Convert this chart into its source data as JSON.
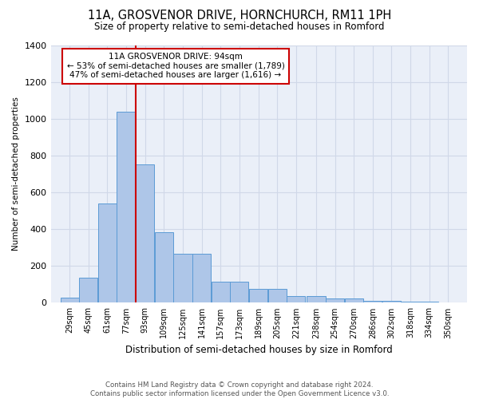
{
  "title": "11A, GROSVENOR DRIVE, HORNCHURCH, RM11 1PH",
  "subtitle": "Size of property relative to semi-detached houses in Romford",
  "annotation_title": "11A GROSVENOR DRIVE: 94sqm",
  "annotation_line1": "← 53% of semi-detached houses are smaller (1,789)",
  "annotation_line2": "47% of semi-detached houses are larger (1,616) →",
  "xlabel": "Distribution of semi-detached houses by size in Romford",
  "ylabel": "Number of semi-detached properties",
  "footer1": "Contains HM Land Registry data © Crown copyright and database right 2024.",
  "footer2": "Contains public sector information licensed under the Open Government Licence v3.0.",
  "bin_labels": [
    "29sqm",
    "45sqm",
    "61sqm",
    "77sqm",
    "93sqm",
    "109sqm",
    "125sqm",
    "141sqm",
    "157sqm",
    "173sqm",
    "189sqm",
    "205sqm",
    "221sqm",
    "238sqm",
    "254sqm",
    "270sqm",
    "286sqm",
    "302sqm",
    "318sqm",
    "334sqm",
    "350sqm"
  ],
  "bar_values": [
    28,
    135,
    540,
    1040,
    750,
    385,
    265,
    265,
    115,
    115,
    75,
    75,
    35,
    35,
    22,
    22,
    10,
    10,
    8,
    8
  ],
  "bar_color": "#aec6e8",
  "bar_edgecolor": "#5b9bd5",
  "property_line_x": 93,
  "bin_edges": [
    29,
    45,
    61,
    77,
    93,
    109,
    125,
    141,
    157,
    173,
    189,
    205,
    221,
    238,
    254,
    270,
    286,
    302,
    318,
    334,
    350
  ],
  "ylim": [
    0,
    1400
  ],
  "yticks": [
    0,
    200,
    400,
    600,
    800,
    1000,
    1200,
    1400
  ],
  "annotation_box_color": "#ffffff",
  "annotation_box_edgecolor": "#cc0000",
  "vline_color": "#cc0000",
  "grid_color": "#d0d8e8",
  "bg_color": "#eaeff8"
}
